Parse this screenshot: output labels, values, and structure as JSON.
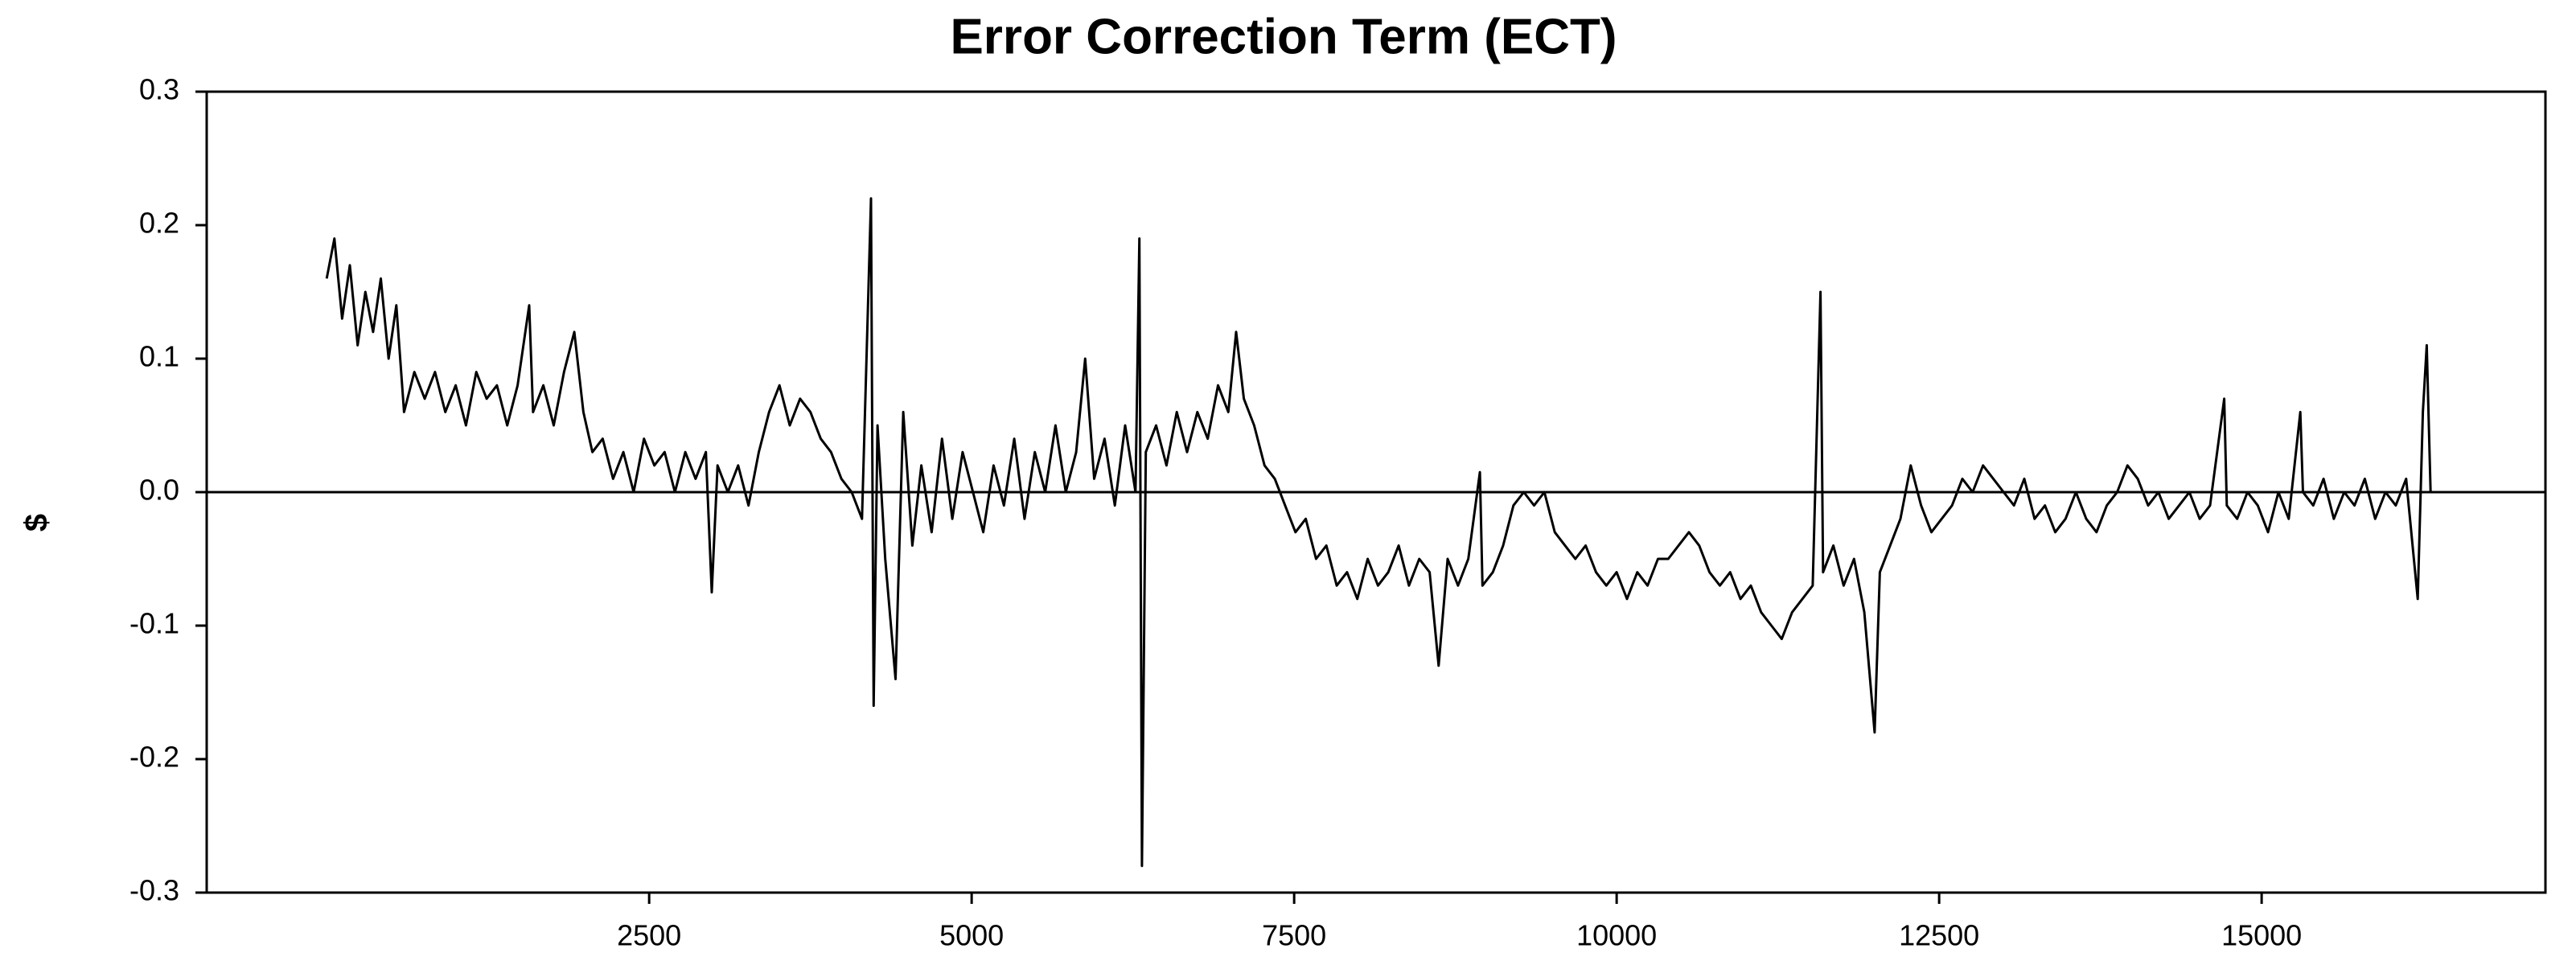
{
  "chart_data": {
    "type": "line",
    "title": "Error Correction Term (ECT)",
    "y_label": "$",
    "xlim": [
      -930,
      17200
    ],
    "xticks": [
      2500,
      5000,
      7500,
      10000,
      12500,
      15000
    ],
    "ylim": [
      -0.3,
      0.3
    ],
    "yticks": [
      -0.3,
      -0.2,
      -0.1,
      {
        "value": 0,
        "label": "0.0"
      },
      0.1,
      0.2,
      0.3
    ],
    "zero_line": true,
    "series": [
      {
        "color": "#000000",
        "x": [
          0,
          60,
          120,
          180,
          240,
          300,
          360,
          420,
          480,
          540,
          600,
          680,
          760,
          840,
          920,
          1000,
          1080,
          1160,
          1240,
          1320,
          1400,
          1480,
          1570,
          1600,
          1680,
          1760,
          1840,
          1920,
          1990,
          2060,
          2140,
          2220,
          2300,
          2380,
          2460,
          2540,
          2620,
          2700,
          2780,
          2860,
          2940,
          2985,
          3030,
          3110,
          3190,
          3270,
          3350,
          3430,
          3510,
          3590,
          3670,
          3750,
          3830,
          3910,
          3990,
          4070,
          4150,
          4220,
          4240,
          4270,
          4330,
          4410,
          4470,
          4540,
          4610,
          4690,
          4770,
          4850,
          4930,
          5010,
          5090,
          5170,
          5250,
          5330,
          5410,
          5490,
          5570,
          5650,
          5730,
          5810,
          5880,
          5950,
          6030,
          6110,
          6190,
          6270,
          6300,
          6320,
          6350,
          6430,
          6510,
          6590,
          6670,
          6750,
          6830,
          6910,
          6990,
          7050,
          7110,
          7190,
          7270,
          7350,
          7430,
          7510,
          7590,
          7670,
          7750,
          7830,
          7910,
          7990,
          8070,
          8150,
          8230,
          8310,
          8390,
          8470,
          8550,
          8620,
          8690,
          8770,
          8850,
          8940,
          8960,
          9040,
          9120,
          9200,
          9280,
          9360,
          9440,
          9520,
          9600,
          9680,
          9760,
          9840,
          9920,
          10000,
          10080,
          10160,
          10240,
          10320,
          10400,
          10480,
          10560,
          10640,
          10720,
          10800,
          10880,
          10960,
          11040,
          11120,
          11200,
          11280,
          11360,
          11440,
          11520,
          11580,
          11600,
          11680,
          11760,
          11840,
          11920,
          12000,
          12040,
          12120,
          12200,
          12280,
          12360,
          12440,
          12520,
          12600,
          12680,
          12760,
          12840,
          12920,
          13000,
          13080,
          13160,
          13240,
          13320,
          13400,
          13480,
          13560,
          13640,
          13720,
          13800,
          13880,
          13960,
          14040,
          14120,
          14200,
          14280,
          14360,
          14440,
          14520,
          14600,
          14710,
          14730,
          14810,
          14890,
          14970,
          15050,
          15130,
          15210,
          15300,
          15320,
          15400,
          15480,
          15560,
          15640,
          15720,
          15800,
          15880,
          15960,
          16040,
          16120,
          16210,
          16250,
          16280,
          16310
        ],
        "values": [
          0.16,
          0.19,
          0.13,
          0.17,
          0.11,
          0.15,
          0.12,
          0.16,
          0.1,
          0.14,
          0.06,
          0.09,
          0.07,
          0.09,
          0.06,
          0.08,
          0.05,
          0.09,
          0.07,
          0.08,
          0.05,
          0.08,
          0.14,
          0.06,
          0.08,
          0.05,
          0.09,
          0.12,
          0.06,
          0.03,
          0.04,
          0.01,
          0.03,
          0.0,
          0.04,
          0.02,
          0.03,
          0.0,
          0.03,
          0.01,
          0.03,
          -0.075,
          0.02,
          0.0,
          0.02,
          -0.01,
          0.03,
          0.06,
          0.08,
          0.05,
          0.07,
          0.06,
          0.04,
          0.03,
          0.01,
          0.0,
          -0.02,
          0.22,
          -0.16,
          0.05,
          -0.05,
          -0.14,
          0.06,
          -0.04,
          0.02,
          -0.03,
          0.04,
          -0.02,
          0.03,
          0.0,
          -0.03,
          0.02,
          -0.01,
          0.04,
          -0.02,
          0.03,
          0.0,
          0.05,
          0.0,
          0.03,
          0.1,
          0.01,
          0.04,
          -0.01,
          0.05,
          0.0,
          0.19,
          -0.28,
          0.03,
          0.05,
          0.02,
          0.06,
          0.03,
          0.06,
          0.04,
          0.08,
          0.06,
          0.12,
          0.07,
          0.05,
          0.02,
          0.01,
          -0.01,
          -0.03,
          -0.02,
          -0.05,
          -0.04,
          -0.07,
          -0.06,
          -0.08,
          -0.05,
          -0.07,
          -0.06,
          -0.04,
          -0.07,
          -0.05,
          -0.06,
          -0.13,
          -0.05,
          -0.07,
          -0.05,
          0.015,
          -0.07,
          -0.06,
          -0.04,
          -0.01,
          0.0,
          -0.01,
          0.0,
          -0.03,
          -0.04,
          -0.05,
          -0.04,
          -0.06,
          -0.07,
          -0.06,
          -0.08,
          -0.06,
          -0.07,
          -0.05,
          -0.05,
          -0.04,
          -0.03,
          -0.04,
          -0.06,
          -0.07,
          -0.06,
          -0.08,
          -0.07,
          -0.09,
          -0.1,
          -0.11,
          -0.09,
          -0.08,
          -0.07,
          0.15,
          -0.06,
          -0.04,
          -0.07,
          -0.05,
          -0.09,
          -0.18,
          -0.06,
          -0.04,
          -0.02,
          0.02,
          -0.01,
          -0.03,
          -0.02,
          -0.01,
          0.01,
          0.0,
          0.02,
          0.01,
          0.0,
          -0.01,
          0.01,
          -0.02,
          -0.01,
          -0.03,
          -0.02,
          0.0,
          -0.02,
          -0.03,
          -0.01,
          0.0,
          0.02,
          0.01,
          -0.01,
          0.0,
          -0.02,
          -0.01,
          0.0,
          -0.02,
          -0.01,
          0.07,
          -0.01,
          -0.02,
          0.0,
          -0.01,
          -0.03,
          0.0,
          -0.02,
          0.06,
          0.0,
          -0.01,
          0.01,
          -0.02,
          0.0,
          -0.01,
          0.01,
          -0.02,
          0.0,
          -0.01,
          0.01,
          -0.08,
          0.06,
          0.11,
          0.0
        ]
      }
    ]
  }
}
